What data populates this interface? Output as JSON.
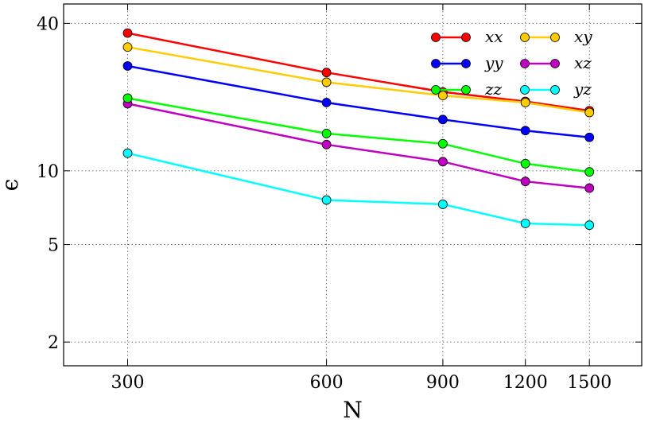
{
  "chart_data": {
    "type": "line",
    "xlabel": "N",
    "ylabel": "ϵ",
    "x": [
      300,
      600,
      900,
      1200,
      1500
    ],
    "x_tick_labels": [
      "300",
      "600",
      "900",
      "1200",
      "1500"
    ],
    "y_tick_values": [
      2,
      5,
      10,
      40
    ],
    "y_tick_labels": [
      "2",
      "5",
      "10",
      "40"
    ],
    "xscale": "log",
    "yscale": "log",
    "xlim": [
      240,
      1800
    ],
    "ylim": [
      1.6,
      48
    ],
    "grid": true,
    "legend_position": "top-right",
    "series": [
      {
        "name": "xx",
        "color": "#ff0000",
        "values": [
          36.5,
          25.2,
          21.0,
          19.2,
          17.6
        ]
      },
      {
        "name": "xy",
        "color": "#ffcc00",
        "values": [
          32.0,
          23.0,
          20.3,
          19.0,
          17.3
        ]
      },
      {
        "name": "yy",
        "color": "#0000ff",
        "values": [
          26.8,
          19.0,
          16.2,
          14.6,
          13.7
        ]
      },
      {
        "name": "xz",
        "color": "#c000c0",
        "values": [
          18.8,
          12.8,
          10.9,
          9.05,
          8.5
        ]
      },
      {
        "name": "zz",
        "color": "#00ff00",
        "values": [
          19.8,
          14.2,
          12.9,
          10.7,
          9.9
        ]
      },
      {
        "name": "yz",
        "color": "#00ffff",
        "values": [
          11.8,
          7.6,
          7.3,
          6.1,
          6.0
        ]
      }
    ]
  }
}
